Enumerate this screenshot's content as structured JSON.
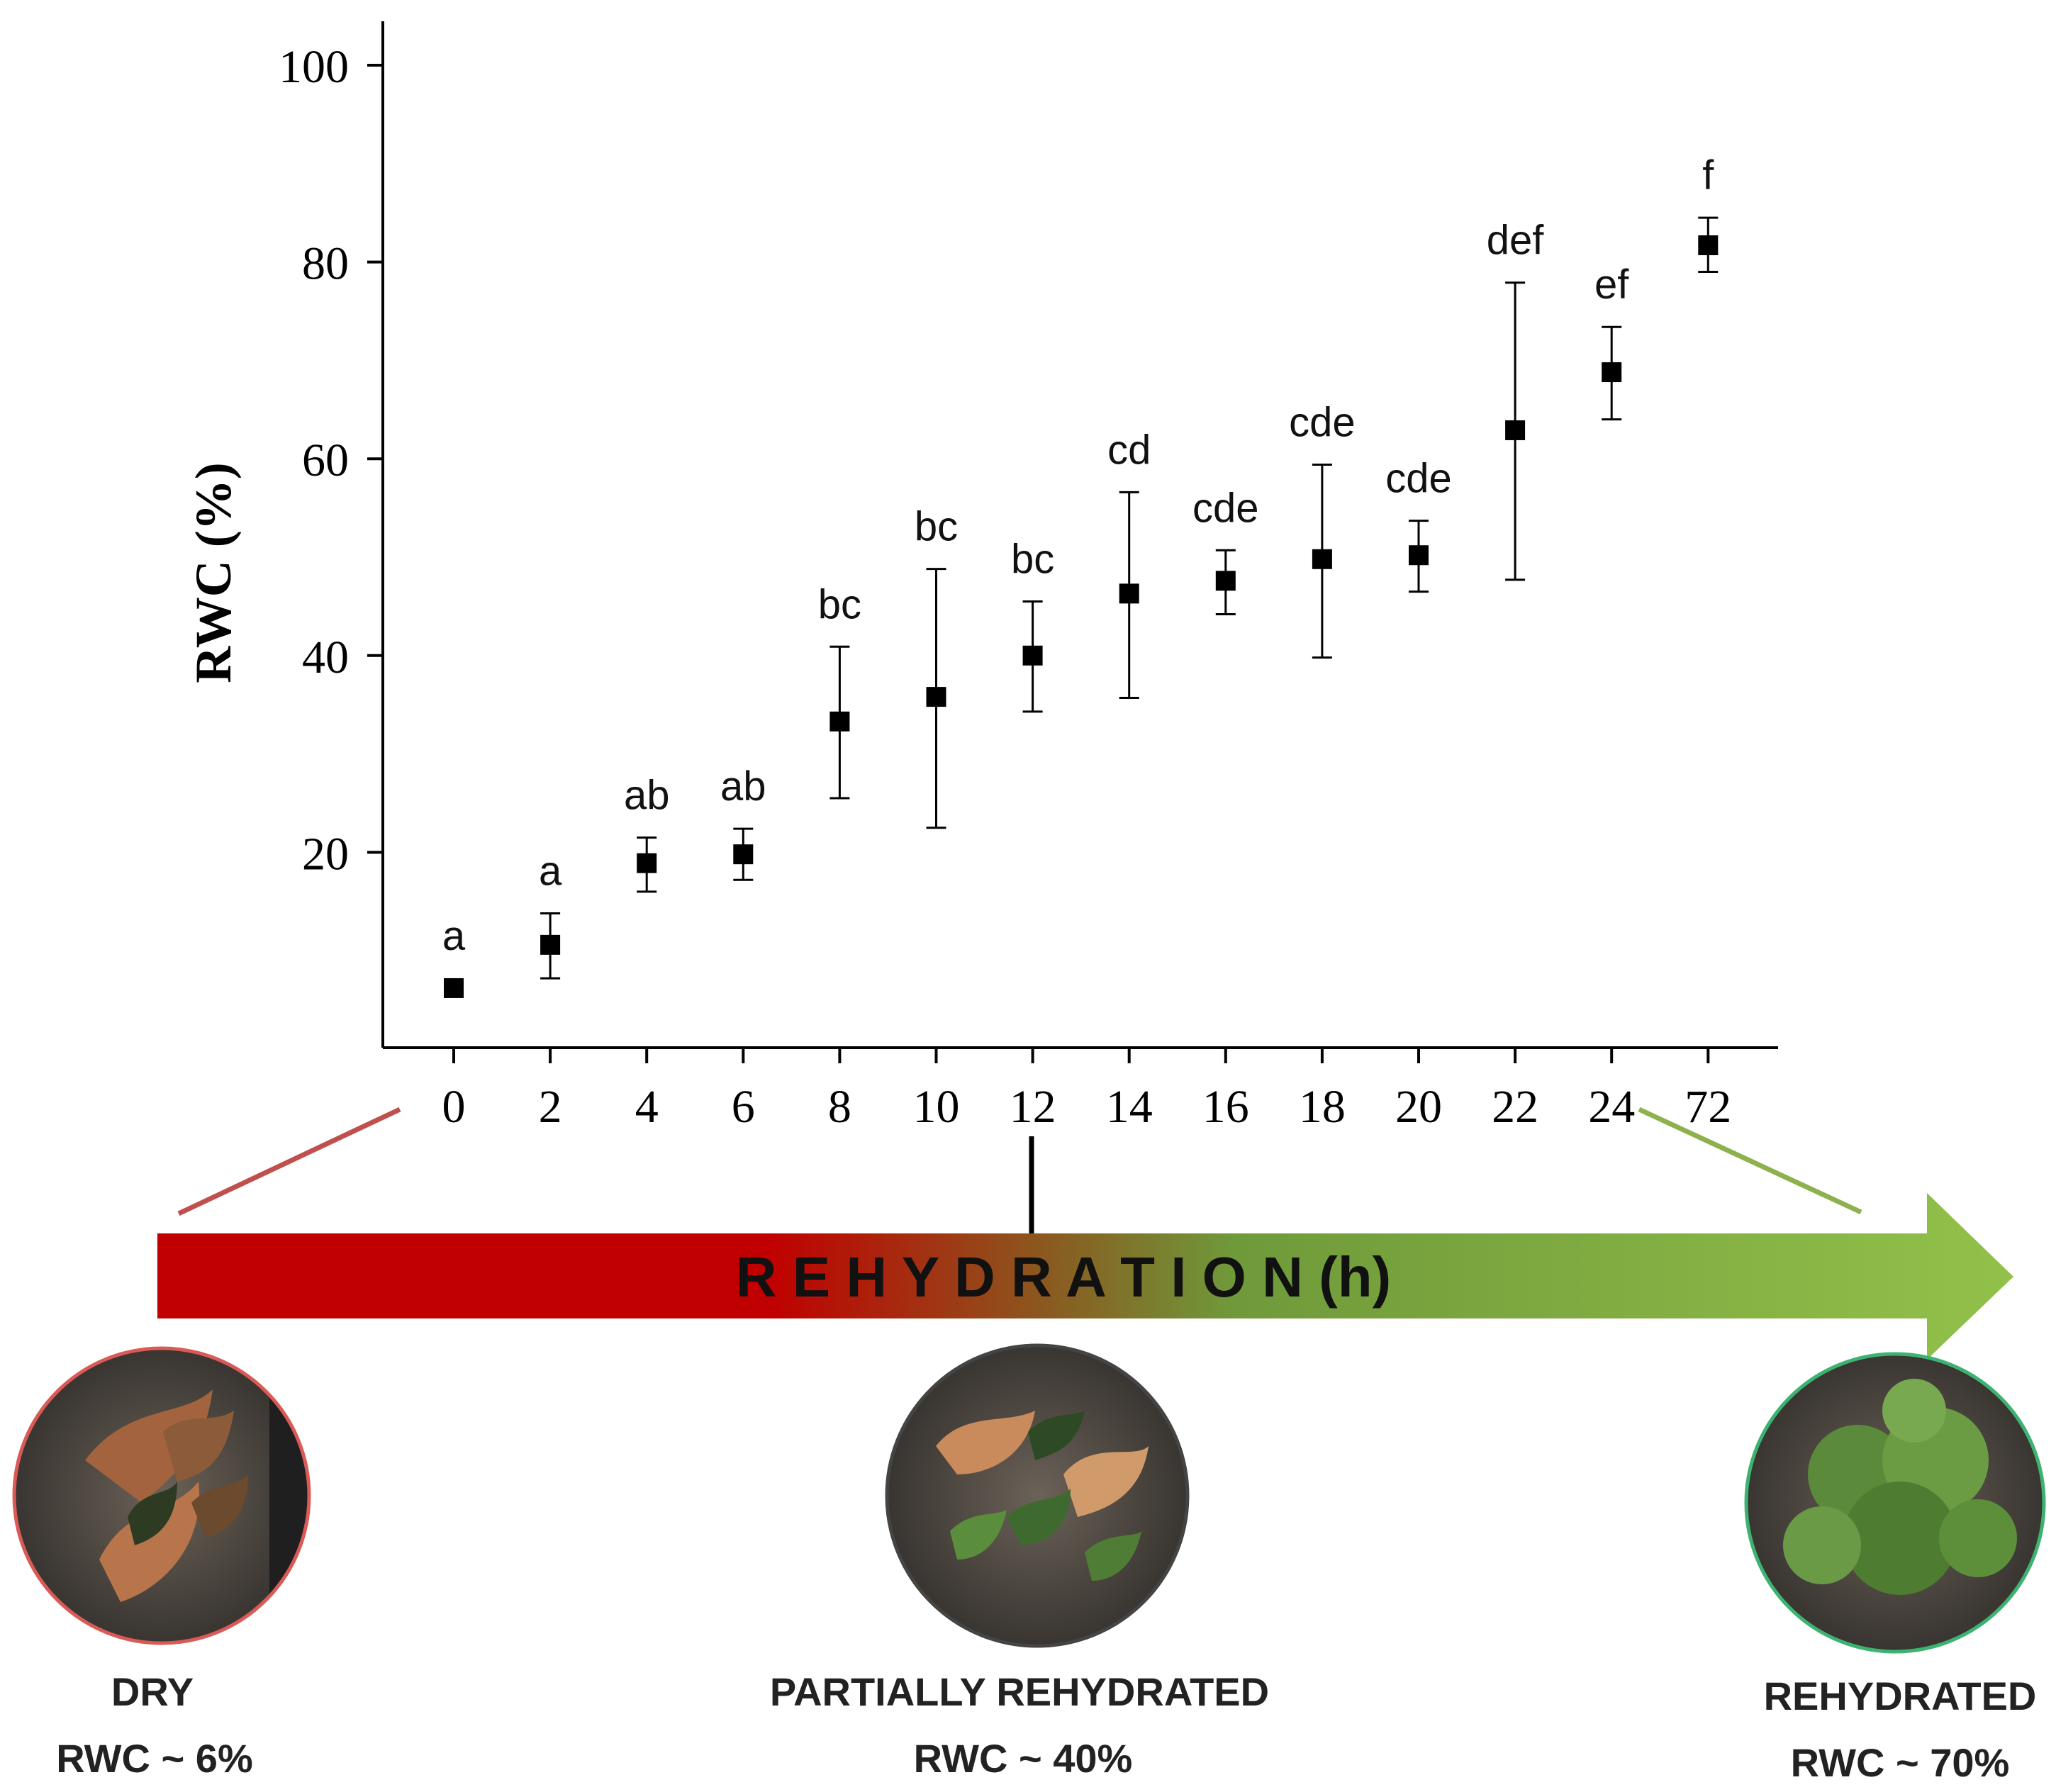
{
  "chart_data": {
    "type": "scatter",
    "title": "",
    "xlabel": "",
    "ylabel": "RWC (%)",
    "ylim": [
      0,
      105
    ],
    "yticks": [
      20,
      40,
      60,
      80,
      100
    ],
    "grid": false,
    "legend": "none",
    "categories": [
      "0",
      "2",
      "4",
      "6",
      "8",
      "10",
      "12",
      "14",
      "16",
      "18",
      "20",
      "22",
      "24",
      "72"
    ],
    "series": [
      {
        "name": "RWC",
        "values": [
          6.2,
          10.6,
          18.9,
          19.8,
          33.3,
          35.8,
          40.0,
          46.3,
          47.6,
          49.8,
          50.2,
          62.9,
          68.8,
          81.7
        ],
        "error_upper": [
          6.2,
          13.8,
          21.5,
          22.4,
          40.9,
          48.8,
          45.5,
          56.6,
          50.7,
          59.4,
          53.7,
          77.9,
          73.4,
          84.5
        ],
        "error_lower": [
          6.2,
          7.2,
          16.0,
          17.2,
          25.5,
          22.5,
          34.3,
          35.7,
          44.2,
          39.8,
          46.5,
          47.7,
          64.0,
          79.0
        ],
        "labels": [
          "a",
          "a",
          "ab",
          "ab",
          "bc",
          "bc",
          "bc",
          "cd",
          "cde",
          "cde",
          "cde",
          "def",
          "ef",
          "f"
        ]
      }
    ]
  },
  "timeline": {
    "label": "R E H Y D R A T I O N (h)",
    "color_start": "#c00000",
    "color_end": "#92c14a",
    "dry_line_color": "#c0504d",
    "wet_line_color": "#8db24d"
  },
  "stages": [
    {
      "title": "DRY",
      "rwc": "RWC ~ 6%",
      "border": "#d95a57"
    },
    {
      "title": "PARTIALLY REHYDRATED",
      "rwc": "RWC ~ 40%",
      "border": "#444444"
    },
    {
      "title": "REHYDRATED",
      "rwc": "RWC ~ 70%",
      "border": "#3cb371"
    }
  ]
}
